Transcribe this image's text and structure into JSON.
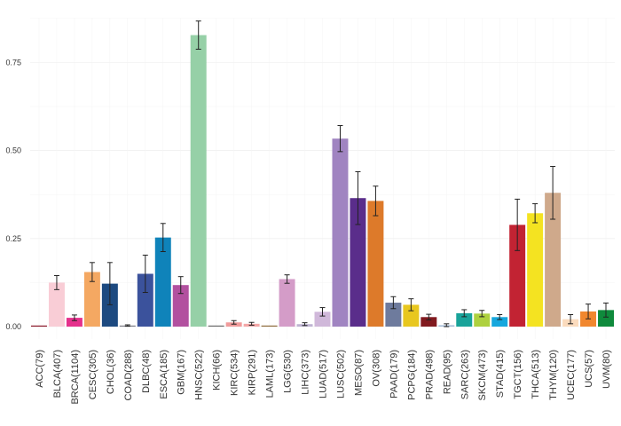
{
  "chart_data": {
    "type": "bar",
    "title": "",
    "xlabel": "",
    "ylabel": "",
    "ylim": [
      0,
      0.9
    ],
    "y_ticks": [
      {
        "value": 0,
        "label": "0.00"
      },
      {
        "value": 0.25,
        "label": "0.25"
      },
      {
        "value": 0.5,
        "label": "0.50"
      },
      {
        "value": 0.75,
        "label": "0.75"
      }
    ],
    "grid": true,
    "categories": [
      "ACC(79)",
      "BLCA(407)",
      "BRCA(1104)",
      "CESC(305)",
      "CHOL(36)",
      "COAD(288)",
      "DLBC(48)",
      "ESCA(185)",
      "GBM(167)",
      "HNSC(522)",
      "KICH(66)",
      "KIRC(534)",
      "KIRP(291)",
      "LAML(173)",
      "LGG(530)",
      "LIHC(373)",
      "LUAD(517)",
      "LUSC(502)",
      "MESO(87)",
      "OV(308)",
      "PAAD(179)",
      "PCPG(184)",
      "PRAD(498)",
      "READ(95)",
      "SARC(263)",
      "SKCM(473)",
      "STAD(415)",
      "TGCT(156)",
      "THCA(513)",
      "THYM(120)",
      "UCEC(177)",
      "UCS(57)",
      "UVM(80)"
    ],
    "values": [
      0.0,
      0.125,
      0.025,
      0.155,
      0.122,
      0.003,
      0.15,
      0.253,
      0.118,
      0.828,
      0.0,
      0.012,
      0.008,
      0.0,
      0.135,
      0.007,
      0.042,
      0.534,
      0.365,
      0.357,
      0.068,
      0.062,
      0.027,
      0.004,
      0.038,
      0.037,
      0.027,
      0.289,
      0.322,
      0.38,
      0.021,
      0.043,
      0.047
    ],
    "errors": [
      0.0,
      0.02,
      0.008,
      0.027,
      0.06,
      0.002,
      0.053,
      0.04,
      0.024,
      0.04,
      0.0,
      0.005,
      0.004,
      0.0,
      0.012,
      0.004,
      0.012,
      0.037,
      0.075,
      0.042,
      0.017,
      0.017,
      0.008,
      0.004,
      0.01,
      0.009,
      0.007,
      0.073,
      0.027,
      0.075,
      0.013,
      0.021,
      0.02
    ],
    "colors": [
      "#8b1a2b",
      "#f9cdd6",
      "#e5308c",
      "#f4a862",
      "#1d4a80",
      "#7d7d86",
      "#3b529c",
      "#0f83ba",
      "#b2509f",
      "#96d0a7",
      "#6c6c6c",
      "#f09b9b",
      "#f4a7a7",
      "#8f6d3d",
      "#d49cc8",
      "#bfb4d3",
      "#d0b8da",
      "#a084c1",
      "#5a2d8b",
      "#dd7a2a",
      "#6e7b9d",
      "#e8c71f",
      "#811a1f",
      "#a6bdd8",
      "#19a39a",
      "#aed13f",
      "#16a7dd",
      "#c22333",
      "#f4e321",
      "#cfa98b",
      "#fbdbbd",
      "#f1872e",
      "#0f8a3c"
    ]
  }
}
